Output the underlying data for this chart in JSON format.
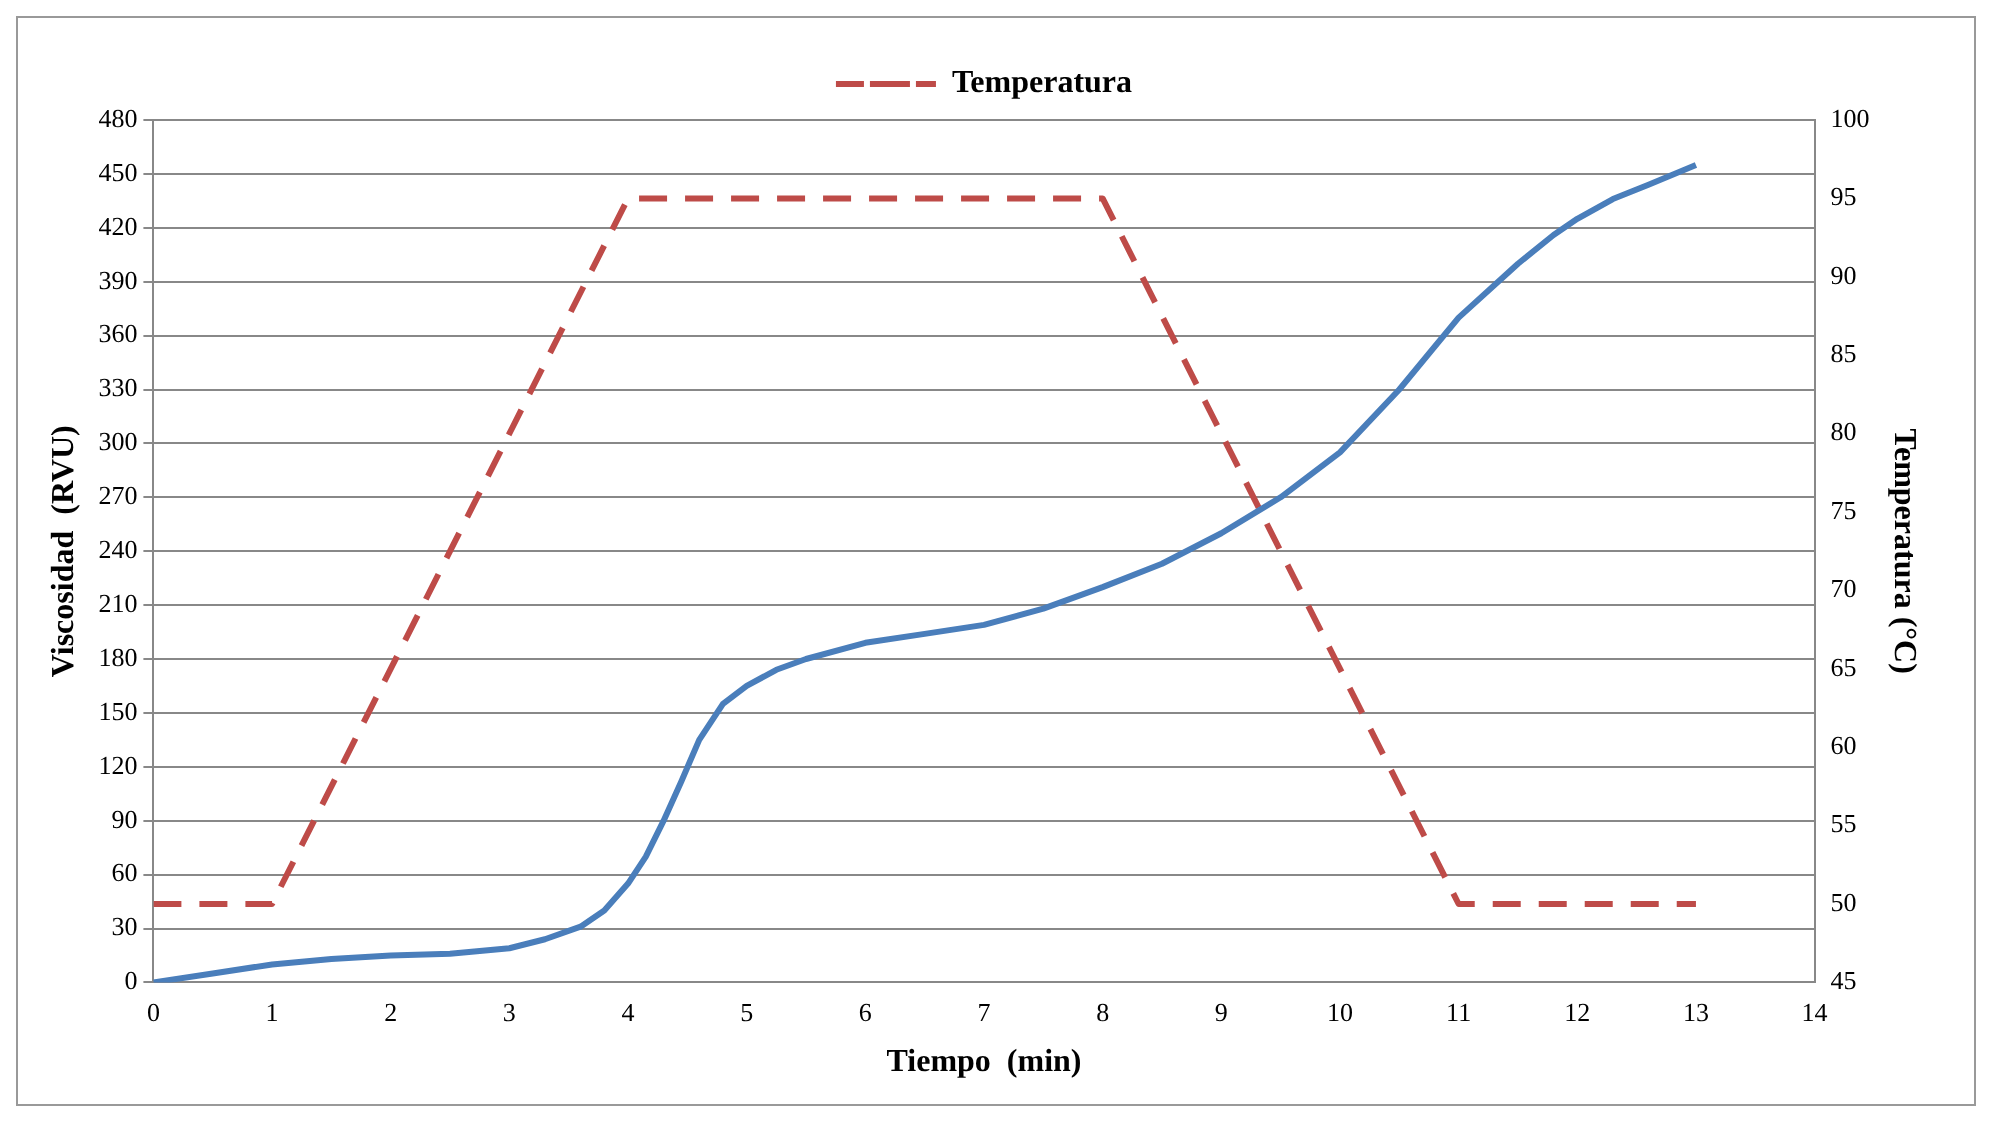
{
  "chart_data": {
    "type": "line",
    "xlabel": "Tiempo  (min)",
    "ylabel": "Viscosidad  (RVU)",
    "y2label": "Temperatura (°C)",
    "xlim": [
      0,
      14
    ],
    "xticks": [
      0,
      1,
      2,
      3,
      4,
      5,
      6,
      7,
      8,
      9,
      10,
      11,
      12,
      13,
      14
    ],
    "ylim": [
      0,
      480
    ],
    "yticks": [
      0,
      30,
      60,
      90,
      120,
      150,
      180,
      210,
      240,
      270,
      300,
      330,
      360,
      390,
      420,
      450,
      480
    ],
    "y2lim": [
      45,
      100
    ],
    "y2ticks": [
      45,
      50,
      55,
      60,
      65,
      70,
      75,
      80,
      85,
      90,
      95,
      100
    ],
    "grid": "y",
    "legend": "top",
    "marker": "none",
    "series": [
      {
        "color": "#4a7ebb",
        "line_style": "solid",
        "x": [
          0,
          0.5,
          1,
          1.5,
          2,
          2.5,
          3,
          3.3,
          3.6,
          3.8,
          4,
          4.15,
          4.3,
          4.45,
          4.6,
          4.8,
          5,
          5.25,
          5.5,
          6,
          6.5,
          7,
          7.5,
          8,
          8.5,
          9,
          9.5,
          10,
          10.5,
          11,
          11.5,
          11.8,
          12,
          12.3,
          12.6,
          13
        ],
        "values": [
          0,
          5,
          10,
          13,
          15,
          16,
          19,
          24,
          31,
          40,
          55,
          70,
          90,
          112,
          135,
          155,
          165,
          174,
          180,
          189,
          194,
          199,
          208,
          220,
          233,
          250,
          270,
          295,
          330,
          370,
          400,
          416,
          425,
          436,
          444,
          455
        ]
      },
      {
        "name": "Temperatura",
        "color": "#be4b48",
        "line_style": "dashed",
        "axis": "y2",
        "x": [
          0,
          1,
          4,
          8,
          11,
          13
        ],
        "values": [
          50,
          50,
          95,
          95,
          50,
          50
        ]
      }
    ]
  }
}
